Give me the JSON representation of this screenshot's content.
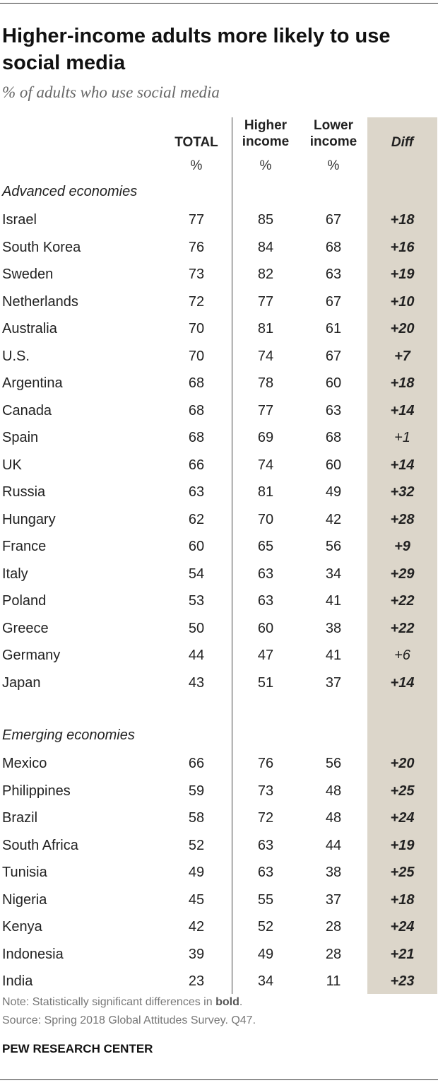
{
  "title": "Higher-income adults more likely to use social media",
  "subtitle": "% of adults who use social media",
  "columns": {
    "total": "TOTAL",
    "higher_1": "Higher",
    "higher_2": "income",
    "lower_1": "Lower",
    "lower_2": "income",
    "diff": "Diff",
    "unit": "%"
  },
  "sections": {
    "advanced": "Advanced economies",
    "emerging": "Emerging economies"
  },
  "note": "Note: Statistically significant differences in",
  "note_bold": "bold",
  "note_end": ".",
  "source": "Source: Spring 2018 Global Attitudes Survey. Q47.",
  "brand": "PEW RESEARCH CENTER",
  "chart_data": {
    "type": "table",
    "columns": [
      "TOTAL",
      "Higher income",
      "Lower income",
      "Diff"
    ],
    "groups": [
      {
        "name": "Advanced economies",
        "rows": [
          {
            "country": "Israel",
            "total": 77,
            "higher": 85,
            "lower": 67,
            "diff": "+18",
            "significant": true
          },
          {
            "country": "South Korea",
            "total": 76,
            "higher": 84,
            "lower": 68,
            "diff": "+16",
            "significant": true
          },
          {
            "country": "Sweden",
            "total": 73,
            "higher": 82,
            "lower": 63,
            "diff": "+19",
            "significant": true
          },
          {
            "country": "Netherlands",
            "total": 72,
            "higher": 77,
            "lower": 67,
            "diff": "+10",
            "significant": true
          },
          {
            "country": "Australia",
            "total": 70,
            "higher": 81,
            "lower": 61,
            "diff": "+20",
            "significant": true
          },
          {
            "country": "U.S.",
            "total": 70,
            "higher": 74,
            "lower": 67,
            "diff": "+7",
            "significant": true
          },
          {
            "country": "Argentina",
            "total": 68,
            "higher": 78,
            "lower": 60,
            "diff": "+18",
            "significant": true
          },
          {
            "country": "Canada",
            "total": 68,
            "higher": 77,
            "lower": 63,
            "diff": "+14",
            "significant": true
          },
          {
            "country": "Spain",
            "total": 68,
            "higher": 69,
            "lower": 68,
            "diff": "+1",
            "significant": false
          },
          {
            "country": "UK",
            "total": 66,
            "higher": 74,
            "lower": 60,
            "diff": "+14",
            "significant": true
          },
          {
            "country": "Russia",
            "total": 63,
            "higher": 81,
            "lower": 49,
            "diff": "+32",
            "significant": true
          },
          {
            "country": "Hungary",
            "total": 62,
            "higher": 70,
            "lower": 42,
            "diff": "+28",
            "significant": true
          },
          {
            "country": "France",
            "total": 60,
            "higher": 65,
            "lower": 56,
            "diff": "+9",
            "significant": true
          },
          {
            "country": "Italy",
            "total": 54,
            "higher": 63,
            "lower": 34,
            "diff": "+29",
            "significant": true
          },
          {
            "country": "Poland",
            "total": 53,
            "higher": 63,
            "lower": 41,
            "diff": "+22",
            "significant": true
          },
          {
            "country": "Greece",
            "total": 50,
            "higher": 60,
            "lower": 38,
            "diff": "+22",
            "significant": true
          },
          {
            "country": "Germany",
            "total": 44,
            "higher": 47,
            "lower": 41,
            "diff": "+6",
            "significant": false
          },
          {
            "country": "Japan",
            "total": 43,
            "higher": 51,
            "lower": 37,
            "diff": "+14",
            "significant": true
          }
        ]
      },
      {
        "name": "Emerging economies",
        "rows": [
          {
            "country": "Mexico",
            "total": 66,
            "higher": 76,
            "lower": 56,
            "diff": "+20",
            "significant": true
          },
          {
            "country": "Philippines",
            "total": 59,
            "higher": 73,
            "lower": 48,
            "diff": "+25",
            "significant": true
          },
          {
            "country": "Brazil",
            "total": 58,
            "higher": 72,
            "lower": 48,
            "diff": "+24",
            "significant": true
          },
          {
            "country": "South Africa",
            "total": 52,
            "higher": 63,
            "lower": 44,
            "diff": "+19",
            "significant": true
          },
          {
            "country": "Tunisia",
            "total": 49,
            "higher": 63,
            "lower": 38,
            "diff": "+25",
            "significant": true
          },
          {
            "country": "Nigeria",
            "total": 45,
            "higher": 55,
            "lower": 37,
            "diff": "+18",
            "significant": true
          },
          {
            "country": "Kenya",
            "total": 42,
            "higher": 52,
            "lower": 28,
            "diff": "+24",
            "significant": true
          },
          {
            "country": "Indonesia",
            "total": 39,
            "higher": 49,
            "lower": 28,
            "diff": "+21",
            "significant": true
          },
          {
            "country": "India",
            "total": 23,
            "higher": 34,
            "lower": 11,
            "diff": "+23",
            "significant": true
          }
        ]
      }
    ]
  }
}
